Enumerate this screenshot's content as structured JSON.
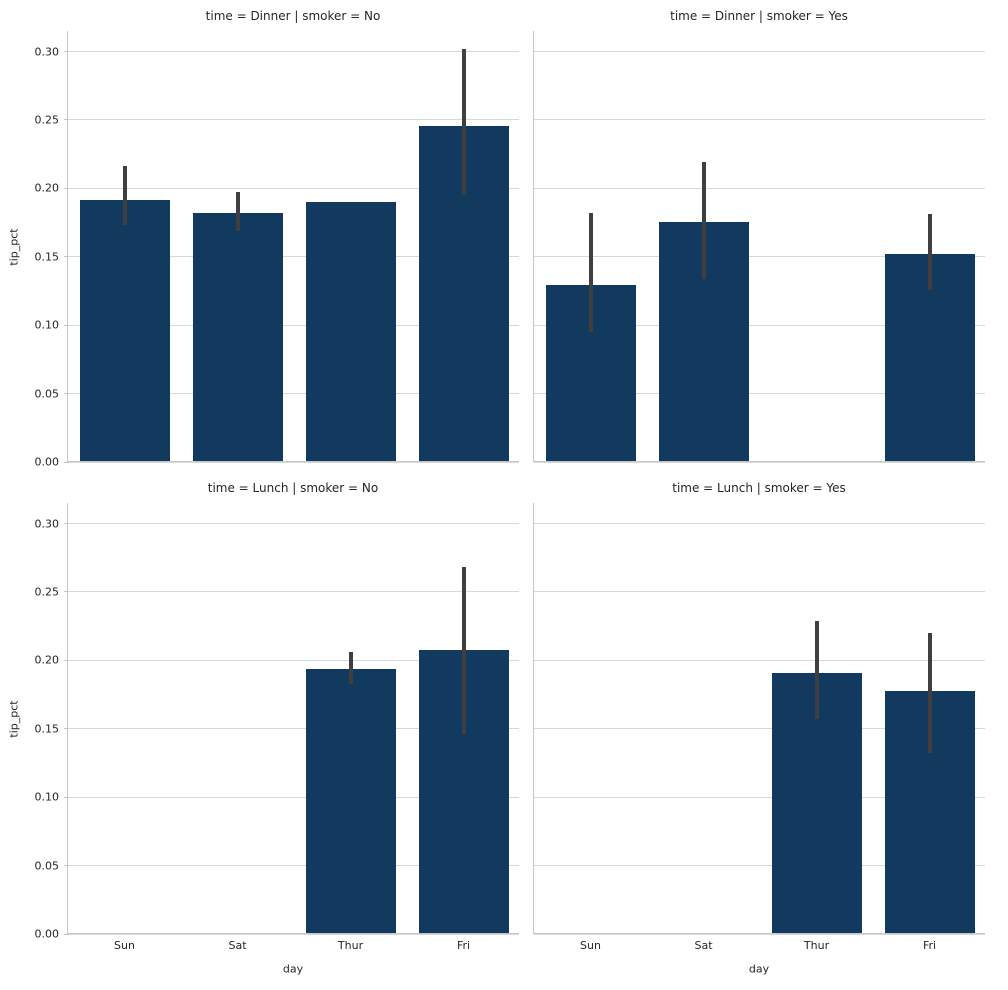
{
  "chart_data": {
    "type": "bar",
    "title": "",
    "facet_row_variable": "time",
    "facet_col_variable": "smoker",
    "facet_rows": [
      "Dinner",
      "Lunch"
    ],
    "facet_cols": [
      "No",
      "Yes"
    ],
    "categories": [
      "Sun",
      "Sat",
      "Thur",
      "Fri"
    ],
    "xlabel": "day",
    "ylabel": "tip_pct",
    "ylim": [
      0,
      0.315
    ],
    "yticks": [
      0.0,
      0.05,
      0.1,
      0.15,
      0.2,
      0.25,
      0.3
    ],
    "ytick_labels": [
      "0.00",
      "0.05",
      "0.10",
      "0.15",
      "0.20",
      "0.25",
      "0.30"
    ],
    "grid": true,
    "legend": false,
    "bar_color": "#123a5e",
    "error_bar_color": "#3f3f3f",
    "facets": [
      {
        "title": "time = Dinner | smoker = No",
        "row": 0,
        "col": 0,
        "values": [
          0.191,
          0.181,
          0.189,
          0.245
        ],
        "ci_low": [
          0.173,
          0.169,
          null,
          0.195
        ],
        "ci_high": [
          0.216,
          0.197,
          null,
          0.302
        ]
      },
      {
        "title": "time = Dinner | smoker = Yes",
        "row": 0,
        "col": 1,
        "values": [
          0.129,
          0.175,
          null,
          0.151
        ],
        "ci_low": [
          0.095,
          0.134,
          null,
          0.126
        ],
        "ci_high": [
          0.182,
          0.219,
          null,
          0.181
        ]
      },
      {
        "title": "time = Lunch | smoker = No",
        "row": 1,
        "col": 0,
        "values": [
          null,
          null,
          0.193,
          0.207
        ],
        "ci_low": [
          null,
          null,
          0.183,
          0.146
        ],
        "ci_high": [
          null,
          null,
          0.206,
          0.268
        ]
      },
      {
        "title": "time = Lunch | smoker = Yes",
        "row": 1,
        "col": 1,
        "values": [
          null,
          null,
          0.19,
          0.177
        ],
        "ci_low": [
          null,
          null,
          0.157,
          0.132
        ],
        "ci_high": [
          null,
          null,
          0.229,
          0.22
        ]
      }
    ]
  }
}
